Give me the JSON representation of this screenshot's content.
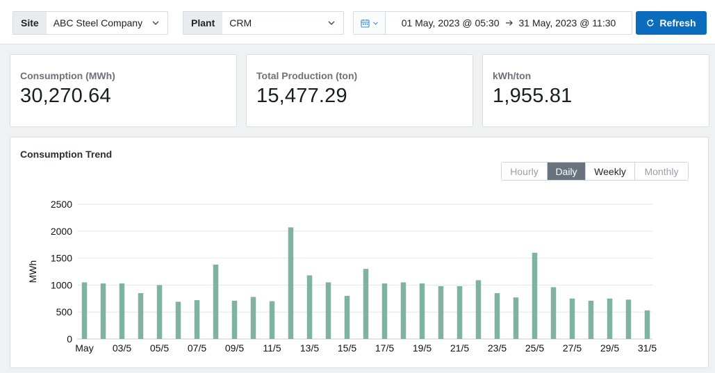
{
  "filters": {
    "site": {
      "label": "Site",
      "value": "ABC Steel Company"
    },
    "plant": {
      "label": "Plant",
      "value": "CRM"
    },
    "date_range": {
      "start": "01 May, 2023 @ 05:30",
      "end": "31 May, 2023 @ 11:30"
    },
    "refresh_label": "Refresh"
  },
  "kpis": [
    {
      "label": "Consumption (MWh)",
      "value": "30,270.64"
    },
    {
      "label": "Total Production (ton)",
      "value": "15,477.29"
    },
    {
      "label": "kWh/ton",
      "value": "1,955.81"
    }
  ],
  "chart_card": {
    "title": "Consumption Trend",
    "granularity": [
      {
        "label": "Hourly",
        "state": "disabled"
      },
      {
        "label": "Daily",
        "state": "active"
      },
      {
        "label": "Weekly",
        "state": "enabled"
      },
      {
        "label": "Monthly",
        "state": "disabled"
      }
    ]
  },
  "colors": {
    "bar": "#7fb3a0",
    "primary": "#0b6bbd",
    "grid": "#e4e6e9"
  },
  "icons": {
    "calendar": "calendar-icon",
    "chevron": "chevron-down-icon",
    "arrow": "arrow-right-icon",
    "refresh": "refresh-icon"
  },
  "chart_data": {
    "type": "bar",
    "title": "Consumption Trend",
    "xlabel": "",
    "ylabel": "MWh",
    "ylim": [
      0,
      2500
    ],
    "yticks": [
      0,
      500,
      1000,
      1500,
      2000,
      2500
    ],
    "grid": true,
    "categories": [
      "May",
      "02/5",
      "03/5",
      "04/5",
      "05/5",
      "06/5",
      "07/5",
      "08/5",
      "09/5",
      "10/5",
      "11/5",
      "12/5",
      "13/5",
      "14/5",
      "15/5",
      "16/5",
      "17/5",
      "18/5",
      "19/5",
      "20/5",
      "21/5",
      "22/5",
      "23/5",
      "24/5",
      "25/5",
      "26/5",
      "27/5",
      "28/5",
      "29/5",
      "30/5",
      "31/5"
    ],
    "tick_labels": [
      "May",
      "03/5",
      "05/5",
      "07/5",
      "09/5",
      "11/5",
      "13/5",
      "15/5",
      "17/5",
      "19/5",
      "21/5",
      "23/5",
      "25/5",
      "27/5",
      "29/5",
      "31/5"
    ],
    "values": [
      1050,
      1030,
      1030,
      850,
      1000,
      690,
      720,
      1380,
      710,
      780,
      700,
      2070,
      1180,
      1050,
      800,
      1300,
      1030,
      1050,
      1030,
      980,
      980,
      1090,
      850,
      770,
      1600,
      960,
      750,
      710,
      750,
      730,
      530
    ]
  }
}
